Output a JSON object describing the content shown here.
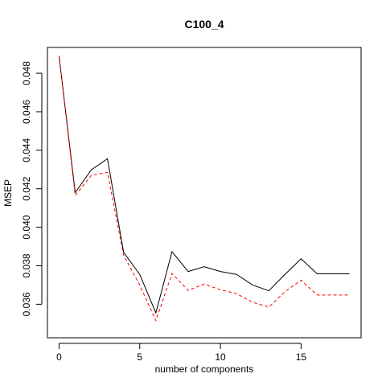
{
  "chart_data": {
    "type": "line",
    "title": "C100_4",
    "xlabel": "number of components",
    "ylabel": "MSEP",
    "xlim": [
      -0.72,
      18.72
    ],
    "ylim": [
      0.03426,
      0.04934
    ],
    "xticks": [
      0,
      5,
      10,
      15
    ],
    "yticks": [
      0.036,
      0.038,
      0.04,
      0.042,
      0.044,
      0.046,
      0.048
    ],
    "x": [
      0,
      1,
      2,
      3,
      4,
      5,
      6,
      7,
      8,
      9,
      10,
      11,
      12,
      13,
      14,
      15,
      16,
      17,
      18
    ],
    "series": [
      {
        "name": "",
        "color": "#000000",
        "dash": "solid",
        "values": [
          0.0489,
          0.0418,
          0.04298,
          0.04356,
          0.0387,
          0.03755,
          0.03555,
          0.03873,
          0.0377,
          0.03795,
          0.0377,
          0.03755,
          0.037,
          0.0367,
          0.03755,
          0.03836,
          0.03758,
          0.03758,
          0.03758
        ]
      },
      {
        "name": "",
        "color": "#ff0000",
        "dash": "dashed",
        "values": [
          0.0489,
          0.04165,
          0.0427,
          0.04285,
          0.03855,
          0.037,
          0.03515,
          0.0376,
          0.03672,
          0.03705,
          0.03675,
          0.03655,
          0.0361,
          0.03585,
          0.03665,
          0.03725,
          0.03648,
          0.03648,
          0.03648
        ]
      }
    ],
    "grid": false,
    "legend": "none"
  }
}
